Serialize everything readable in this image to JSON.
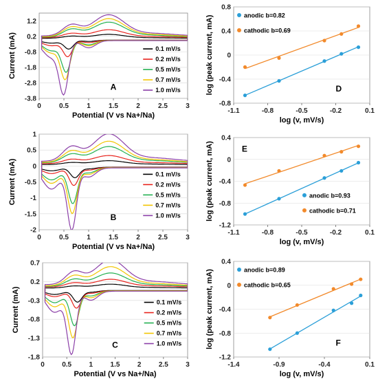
{
  "chart_data": [
    {
      "panel": "A",
      "type": "line",
      "xlabel": "Potential (V vs Na+/Na)",
      "ylabel": "Current (mA)",
      "xlim": [
        0,
        3
      ],
      "ylim": [
        -3.8,
        1.7
      ],
      "xticks": [
        "0",
        "0.5",
        "1",
        "1.5",
        "2",
        "2.5",
        "3"
      ],
      "yticks": [
        "1.2",
        "0.2",
        "-0.8",
        "-1.8",
        "-2.8",
        "-3.8"
      ],
      "series": [
        {
          "name": "0.1 mV/s",
          "color": "#000000",
          "peak_ox": 0.25,
          "peak_red": -0.55,
          "peak_red_x": 0.6,
          "base": 0.05
        },
        {
          "name": "0.2 mV/s",
          "color": "#e8221c",
          "peak_ox": 0.5,
          "peak_red": -1.0,
          "peak_red_x": 0.58,
          "base": 0.08
        },
        {
          "name": "0.5 mV/s",
          "color": "#22b050",
          "peak_ox": 0.95,
          "peak_red": -1.9,
          "peak_red_x": 0.55,
          "base": 0.1
        },
        {
          "name": "0.7 mV/s",
          "color": "#f2c500",
          "peak_ox": 1.15,
          "peak_red": -2.3,
          "peak_red_x": 0.53,
          "base": 0.12
        },
        {
          "name": "1.0 mV/s",
          "color": "#8b3fa8",
          "peak_ox": 1.35,
          "peak_red": -3.1,
          "peak_red_x": 0.5,
          "base": 0.15
        }
      ]
    },
    {
      "panel": "B",
      "type": "line",
      "xlabel": "Potential (V vs Na+/Na)",
      "ylabel": "Current (mA)",
      "xlim": [
        0,
        3
      ],
      "ylim": [
        -2,
        1
      ],
      "xticks": [
        "0",
        "0.5",
        "1",
        "1.5",
        "2",
        "2.5",
        "3"
      ],
      "yticks": [
        "1",
        "0.5",
        "0",
        "-0.5",
        "-1",
        "-1.5",
        "-2"
      ],
      "series": [
        {
          "name": "0.1 mV/s",
          "color": "#000000",
          "peak_ox": 0.12,
          "peak_red": -0.32,
          "peak_red_x": 0.72,
          "base": 0.03
        },
        {
          "name": "0.2 mV/s",
          "color": "#e8221c",
          "peak_ox": 0.25,
          "peak_red": -0.55,
          "peak_red_x": 0.7,
          "base": 0.05
        },
        {
          "name": "0.5 mV/s",
          "color": "#22b050",
          "peak_ox": 0.5,
          "peak_red": -1.1,
          "peak_red_x": 0.68,
          "base": 0.07
        },
        {
          "name": "0.7 mV/s",
          "color": "#f2c500",
          "peak_ox": 0.65,
          "peak_red": -1.4,
          "peak_red_x": 0.67,
          "base": 0.08
        },
        {
          "name": "1.0 mV/s",
          "color": "#8b3fa8",
          "peak_ox": 0.85,
          "peak_red": -1.9,
          "peak_red_x": 0.66,
          "base": 0.1
        }
      ]
    },
    {
      "panel": "C",
      "type": "line",
      "xlabel": "Potential (V vs Na+/Na)",
      "ylabel": "Current (mA)",
      "xlim": [
        0,
        3
      ],
      "ylim": [
        -1.8,
        0.7
      ],
      "xticks": [
        "0",
        "0.5",
        "1",
        "1.5",
        "2",
        "2.5",
        "3"
      ],
      "yticks": [
        "0.7",
        "0.2",
        "-0.3",
        "-0.8",
        "-1.3",
        "-1.8"
      ],
      "series": [
        {
          "name": "0.1 mV/s",
          "color": "#000000",
          "peak_ox": 0.1,
          "peak_red": -0.3,
          "peak_red_x": 0.72,
          "base": 0.02
        },
        {
          "name": "0.2 mV/s",
          "color": "#e8221c",
          "peak_ox": 0.2,
          "peak_red": -0.45,
          "peak_red_x": 0.7,
          "base": 0.04
        },
        {
          "name": "0.5 mV/s",
          "color": "#22b050",
          "peak_ox": 0.35,
          "peak_red": -0.9,
          "peak_red_x": 0.66,
          "base": 0.05
        },
        {
          "name": "0.7 mV/s",
          "color": "#f2c500",
          "peak_ox": 0.5,
          "peak_red": -1.2,
          "peak_red_x": 0.63,
          "base": 0.06
        },
        {
          "name": "1.0 mV/s",
          "color": "#8b3fa8",
          "peak_ox": 0.65,
          "peak_red": -1.6,
          "peak_red_x": 0.6,
          "base": 0.08
        }
      ]
    },
    {
      "panel": "D",
      "type": "scatter",
      "xlabel": "log (v, mV/s)",
      "ylabel": "log (peak current, mA)",
      "xlim": [
        -1.1,
        0.1
      ],
      "ylim": [
        -0.8,
        0.8
      ],
      "xticks": [
        "-1.1",
        "-0.8",
        "-0.5",
        "-0.2",
        "0.1"
      ],
      "yticks": [
        "0.8",
        "0.4",
        "0",
        "-0.4",
        "-0.8"
      ],
      "legend_position": "top-left",
      "series": [
        {
          "name": "anodic b=0.82",
          "color": "#2b9fd8",
          "x": [
            -1.0,
            -0.7,
            -0.3,
            -0.15,
            0.0
          ],
          "y": [
            -0.67,
            -0.43,
            -0.1,
            0.02,
            0.13
          ]
        },
        {
          "name": "cathodic b=0.69",
          "color": "#f28a2b",
          "x": [
            -1.0,
            -0.7,
            -0.3,
            -0.15,
            0.0
          ],
          "y": [
            -0.2,
            -0.05,
            0.24,
            0.35,
            0.48
          ]
        }
      ]
    },
    {
      "panel": "E",
      "type": "scatter",
      "xlabel": "log (v, mV/s)",
      "ylabel": "log (peak current, mA)",
      "xlim": [
        -1.1,
        0.1
      ],
      "ylim": [
        -1.2,
        0.4
      ],
      "xticks": [
        "-1.1",
        "-0.8",
        "-0.5",
        "-0.2",
        "0.1"
      ],
      "yticks": [
        "0.4",
        "0",
        "-0.4",
        "-0.8",
        "-1.2"
      ],
      "legend_position": "bottom-right",
      "series": [
        {
          "name": "anodic b=0.93",
          "color": "#2b9fd8",
          "x": [
            -1.0,
            -0.7,
            -0.3,
            -0.15,
            0.0
          ],
          "y": [
            -1.0,
            -0.72,
            -0.34,
            -0.21,
            -0.06
          ]
        },
        {
          "name": "cathodic b=0.71",
          "color": "#f28a2b",
          "x": [
            -1.0,
            -0.7,
            -0.3,
            -0.15,
            0.0
          ],
          "y": [
            -0.47,
            -0.21,
            0.07,
            0.14,
            0.24
          ]
        }
      ]
    },
    {
      "panel": "F",
      "type": "scatter",
      "xlabel": "log (v, mV/s)",
      "ylabel": "log (peak current, mA)",
      "xlim": [
        -1.4,
        0.1
      ],
      "ylim": [
        -1.2,
        0.4
      ],
      "xticks": [
        "-1.4",
        "-0.9",
        "-0.4",
        "0.1"
      ],
      "yticks": [
        "0.4",
        "0",
        "-0.4",
        "-0.8",
        "-1.2"
      ],
      "legend_position": "top-left",
      "series": [
        {
          "name": "anodic b=0.89",
          "color": "#2b9fd8",
          "x": [
            -1.0,
            -0.7,
            -0.3,
            -0.1,
            0.0
          ],
          "y": [
            -1.07,
            -0.8,
            -0.42,
            -0.3,
            -0.17
          ]
        },
        {
          "name": "cathodic b=0.65",
          "color": "#f28a2b",
          "x": [
            -1.0,
            -0.7,
            -0.3,
            -0.1,
            0.0
          ],
          "y": [
            -0.54,
            -0.33,
            -0.06,
            0.02,
            0.1
          ]
        }
      ]
    }
  ]
}
